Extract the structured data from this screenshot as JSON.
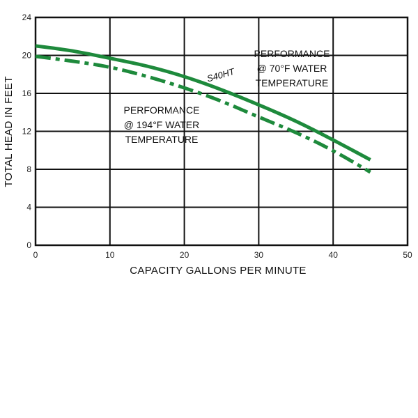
{
  "chart_data": {
    "type": "line",
    "title": "",
    "xlabel": "CAPACITY GALLONS PER MINUTE",
    "ylabel": "TOTAL HEAD IN FEET",
    "xlim": [
      0,
      50
    ],
    "ylim": [
      0,
      24
    ],
    "xticks": [
      "0",
      "10",
      "20",
      "30",
      "40",
      "50"
    ],
    "yticks": [
      "0",
      "4",
      "8",
      "12",
      "16",
      "20",
      "24"
    ],
    "grid": true,
    "series_color": "#1e8a3c",
    "series": [
      {
        "name": "S40HT",
        "style": "solid",
        "x": [
          0,
          5,
          10,
          15,
          20,
          25,
          30,
          35,
          40,
          45
        ],
        "y": [
          21,
          20.5,
          19.7,
          18.9,
          17.8,
          16.4,
          14.8,
          13.1,
          11.1,
          9.0
        ]
      },
      {
        "name": "",
        "style": "dash-dot",
        "x": [
          0,
          5,
          10,
          15,
          20,
          25,
          30,
          35,
          40,
          45
        ],
        "y": [
          19.9,
          19.4,
          18.8,
          17.8,
          16.6,
          15.2,
          13.5,
          11.9,
          10.0,
          7.7
        ]
      }
    ],
    "annotations": {
      "perf70": [
        "PERFORMANCE",
        "@ 70°F WATER",
        "TEMPERATURE"
      ],
      "perf194": [
        "PERFORMANCE",
        "@ 194°F WATER",
        "TEMPERATURE"
      ],
      "series_label": "S40HT"
    }
  }
}
